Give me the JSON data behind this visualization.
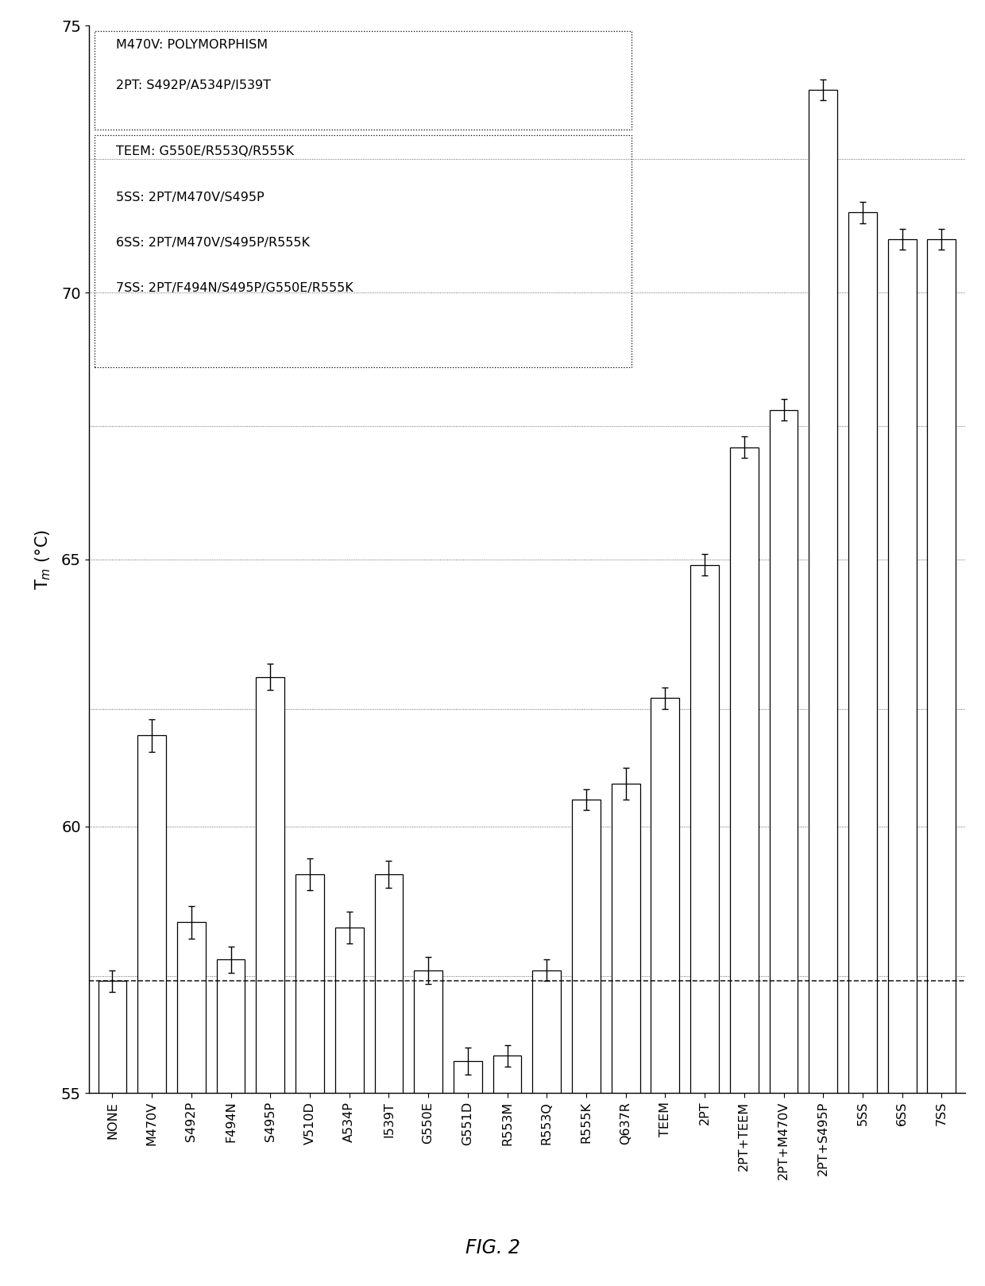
{
  "categories": [
    "NONE",
    "M470V",
    "S492P",
    "F494N",
    "S495P",
    "V510D",
    "A534P",
    "I539T",
    "G550E",
    "G551D",
    "R553M",
    "R553Q",
    "R555K",
    "Q637R",
    "TEEM",
    "2PT",
    "2PT+TEEM",
    "2PT+M470V",
    "2PT+S495P",
    "5SS",
    "6SS",
    "7SS"
  ],
  "bar_values": [
    57.1,
    61.7,
    58.2,
    57.5,
    62.8,
    59.1,
    58.1,
    59.1,
    57.3,
    55.6,
    55.7,
    57.3,
    60.5,
    60.8,
    62.4,
    64.9,
    67.1,
    67.8,
    73.8,
    71.5,
    71.0,
    71.0
  ],
  "errors": [
    0.2,
    0.3,
    0.3,
    0.25,
    0.25,
    0.3,
    0.3,
    0.25,
    0.25,
    0.25,
    0.2,
    0.2,
    0.2,
    0.3,
    0.2,
    0.2,
    0.2,
    0.2,
    0.2,
    0.2,
    0.2,
    0.2
  ],
  "dashed_line_y": 57.1,
  "ylim": [
    55,
    75
  ],
  "yticks": [
    55,
    60,
    65,
    70,
    75
  ],
  "grid_ys_dotted": [
    57.2,
    60.0,
    62.2,
    65.0,
    67.5,
    70.0,
    72.5
  ],
  "legend_box1": [
    "M470V: POLYMORPHISM",
    "2PT: S492P/A534P/I539T"
  ],
  "legend_box2": [
    "TEEM: G550E/R553Q/R555K",
    "5SS: 2PT/M470V/S495P",
    "6SS: 2PT/M470V/S495P/R555K",
    "7SS: 2PT/F494N/S495P/G550E/R555K"
  ],
  "fig_label": "FIG. 2"
}
